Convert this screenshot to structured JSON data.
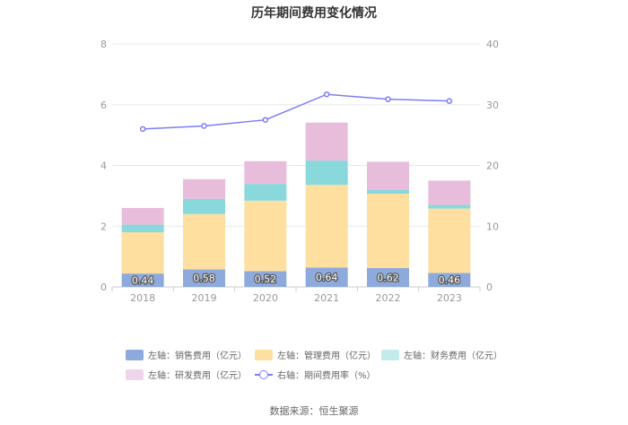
{
  "chart_data": {
    "type": "bar",
    "stacked": true,
    "title": "历年期间费用变化情况",
    "categories": [
      "2018",
      "2019",
      "2020",
      "2021",
      "2022",
      "2023"
    ],
    "y_left": {
      "lim": [
        0,
        8
      ],
      "ticks": [
        "0",
        "2",
        "4",
        "6",
        "8"
      ]
    },
    "y_right": {
      "lim": [
        0,
        40
      ],
      "ticks": [
        "0",
        "10",
        "20",
        "30",
        "40"
      ]
    },
    "series": [
      {
        "name": "左轴：销售费用（亿元）",
        "axis": "left",
        "type": "bar",
        "color": "#8eaadc",
        "values": [
          0.44,
          0.58,
          0.52,
          0.64,
          0.62,
          0.46
        ],
        "labels": [
          "0.44",
          "0.58",
          "0.52",
          "0.64",
          "0.62",
          "0.46"
        ]
      },
      {
        "name": "左轴：管理费用（亿元）",
        "axis": "left",
        "type": "bar",
        "color": "#fedfa0",
        "values": [
          1.36,
          1.82,
          2.32,
          2.72,
          2.45,
          2.12
        ]
      },
      {
        "name": "左轴：财务费用（亿元）",
        "axis": "left",
        "type": "bar",
        "color": "#88d8dc",
        "values": [
          0.25,
          0.5,
          0.55,
          0.8,
          0.12,
          0.12
        ]
      },
      {
        "name": "左轴：研发费用（亿元）",
        "axis": "left",
        "type": "bar",
        "color": "#e8bddc",
        "values": [
          0.55,
          0.65,
          0.75,
          1.25,
          0.93,
          0.8
        ]
      },
      {
        "name": "右轴：期间费用率（%）",
        "axis": "right",
        "type": "line",
        "color": "#7b7ff3",
        "values": [
          26.0,
          26.5,
          27.5,
          31.7,
          30.9,
          30.6
        ]
      }
    ],
    "legend_position": "bottom"
  },
  "legend_items": [
    {
      "label": "左轴：销售费用（亿元）",
      "color": "#8eaadc",
      "kind": "bar"
    },
    {
      "label": "左轴：管理费用（亿元）",
      "color": "#fedfa0",
      "kind": "bar"
    },
    {
      "label": "左轴：财务费用（亿元）",
      "color": "#c2ecec",
      "kind": "bar"
    },
    {
      "label": "左轴：研发费用（亿元）",
      "color": "#f0d4eb",
      "kind": "bar"
    },
    {
      "label": "右轴：期间费用率（%）",
      "color": "#7b7ff3",
      "kind": "line"
    }
  ],
  "source": "数据来源：恒生聚源"
}
